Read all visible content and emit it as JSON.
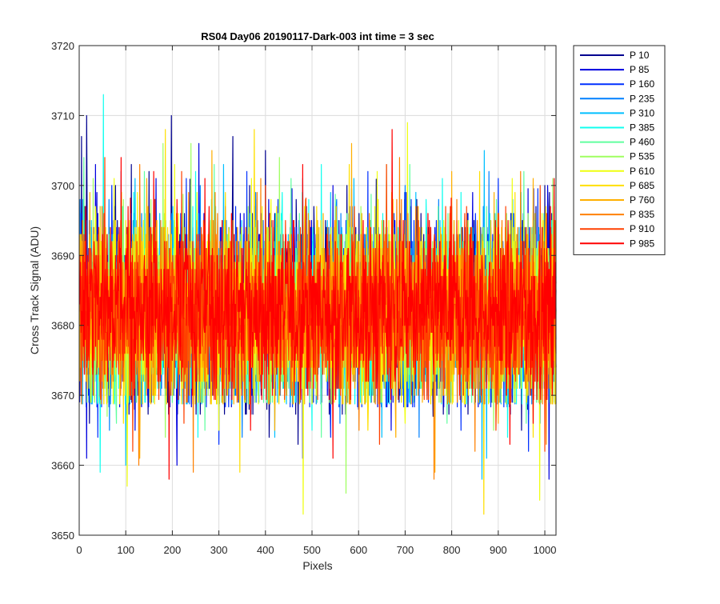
{
  "chart_data": {
    "type": "line",
    "title": "RS04 Day06 20190117-Dark-003 int time = 3 sec",
    "xlabel": "Pixels",
    "ylabel": "Cross Track Signal (ADU)",
    "xlim": [
      0,
      1024
    ],
    "ylim": [
      3650,
      3720
    ],
    "xticks": [
      0,
      100,
      200,
      300,
      400,
      500,
      600,
      700,
      800,
      900,
      1000
    ],
    "yticks": [
      3650,
      3660,
      3670,
      3680,
      3690,
      3700,
      3710,
      3720
    ],
    "grid": true,
    "legend_position": "outside-top-right",
    "x_range": [
      1,
      1024
    ],
    "series": [
      {
        "name": "P 10",
        "color": "#00008F",
        "mean": 3682,
        "sd": 7.0,
        "peaks": [
          [
            5,
            3707
          ],
          [
            16,
            3710
          ],
          [
            112,
            3703
          ],
          [
            150,
            3702
          ],
          [
            198,
            3710
          ],
          [
            330,
            3707
          ],
          [
            400,
            3705
          ],
          [
            466,
            3698
          ],
          [
            575,
            3700
          ],
          [
            800,
            3697
          ],
          [
            1000,
            3700
          ]
        ],
        "troughs": [
          [
            22,
            3666
          ],
          [
            190,
            3669
          ],
          [
            408,
            3664
          ],
          [
            470,
            3663
          ],
          [
            600,
            3668
          ],
          [
            760,
            3667
          ],
          [
            950,
            3665
          ]
        ]
      },
      {
        "name": "P 85",
        "color": "#0000DF",
        "mean": 3682,
        "sd": 6.5,
        "peaks": [
          [
            35,
            3703
          ],
          [
            165,
            3701
          ],
          [
            257,
            3706
          ],
          [
            545,
            3700
          ],
          [
            845,
            3699
          ],
          [
            1006,
            3700
          ]
        ],
        "troughs": [
          [
            16,
            3661
          ],
          [
            120,
            3665
          ],
          [
            210,
            3660
          ],
          [
            480,
            3661
          ],
          [
            670,
            3665
          ],
          [
            1009,
            3658
          ]
        ]
      },
      {
        "name": "P 160",
        "color": "#0030FF",
        "mean": 3682,
        "sd": 6.5,
        "peaks": [
          [
            70,
            3700
          ],
          [
            230,
            3701
          ],
          [
            360,
            3702
          ],
          [
            620,
            3702
          ],
          [
            900,
            3701
          ]
        ],
        "troughs": [
          [
            40,
            3664
          ],
          [
            300,
            3663
          ],
          [
            540,
            3664
          ],
          [
            820,
            3665
          ],
          [
            965,
            3662
          ]
        ]
      },
      {
        "name": "P 235",
        "color": "#0080FF",
        "mean": 3682,
        "sd": 6.3,
        "peaks": [
          [
            90,
            3702
          ],
          [
            260,
            3700
          ],
          [
            480,
            3701
          ],
          [
            700,
            3700
          ],
          [
            880,
            3702
          ]
        ],
        "troughs": [
          [
            65,
            3665
          ],
          [
            350,
            3664
          ],
          [
            560,
            3666
          ],
          [
            730,
            3664
          ],
          [
            990,
            3666
          ]
        ]
      },
      {
        "name": "P 310",
        "color": "#00BFFF",
        "mean": 3682,
        "sd": 6.3,
        "peaks": [
          [
            120,
            3701
          ],
          [
            310,
            3703
          ],
          [
            590,
            3701
          ],
          [
            870,
            3705
          ]
        ],
        "troughs": [
          [
            100,
            3660
          ],
          [
            420,
            3664
          ],
          [
            650,
            3664
          ],
          [
            865,
            3658
          ],
          [
            875,
            3661
          ]
        ]
      },
      {
        "name": "P 385",
        "color": "#10FFEF",
        "mean": 3682,
        "sd": 6.3,
        "peaks": [
          [
            45,
            3709
          ],
          [
            52,
            3713
          ],
          [
            250,
            3702
          ],
          [
            520,
            3703
          ],
          [
            780,
            3701
          ]
        ],
        "troughs": [
          [
            45,
            3659
          ],
          [
            255,
            3664
          ],
          [
            500,
            3665
          ],
          [
            920,
            3664
          ]
        ]
      },
      {
        "name": "P 460",
        "color": "#60FF9F",
        "mean": 3682,
        "sd": 6.2,
        "peaks": [
          [
            10,
            3704
          ],
          [
            140,
            3702
          ],
          [
            290,
            3703
          ],
          [
            455,
            3701
          ],
          [
            710,
            3703
          ],
          [
            955,
            3702
          ]
        ],
        "troughs": [
          [
            80,
            3666
          ],
          [
            270,
            3665
          ],
          [
            520,
            3664
          ],
          [
            790,
            3666
          ],
          [
            960,
            3666
          ]
        ]
      },
      {
        "name": "P 535",
        "color": "#9FFF60",
        "mean": 3682,
        "sd": 6.2,
        "peaks": [
          [
            30,
            3701
          ],
          [
            180,
            3706
          ],
          [
            240,
            3706
          ],
          [
            430,
            3704
          ],
          [
            660,
            3703
          ],
          [
            1017,
            3701
          ]
        ],
        "troughs": [
          [
            60,
            3667
          ],
          [
            185,
            3664
          ],
          [
            573,
            3656
          ],
          [
            890,
            3665
          ]
        ]
      },
      {
        "name": "P 610",
        "color": "#EFFF10",
        "mean": 3682,
        "sd": 6.3,
        "peaks": [
          [
            75,
            3701
          ],
          [
            205,
            3703
          ],
          [
            370,
            3701
          ],
          [
            640,
            3702
          ],
          [
            705,
            3709
          ],
          [
            930,
            3701
          ]
        ],
        "troughs": [
          [
            103,
            3657
          ],
          [
            300,
            3665
          ],
          [
            481,
            3653
          ],
          [
            700,
            3666
          ],
          [
            989,
            3655
          ]
        ]
      },
      {
        "name": "P 685",
        "color": "#FFDF00",
        "mean": 3682,
        "sd": 6.3,
        "peaks": [
          [
            185,
            3708
          ],
          [
            376,
            3708
          ],
          [
            580,
            3703
          ],
          [
            860,
            3702
          ]
        ],
        "troughs": [
          [
            95,
            3666
          ],
          [
            345,
            3659
          ],
          [
            620,
            3665
          ],
          [
            869,
            3653
          ],
          [
            975,
            3664
          ]
        ]
      },
      {
        "name": "P 760",
        "color": "#FFAF00",
        "mean": 3682,
        "sd": 6.3,
        "peaks": [
          [
            145,
            3701
          ],
          [
            285,
            3705
          ],
          [
            585,
            3706
          ],
          [
            800,
            3702
          ],
          [
            975,
            3701
          ]
        ],
        "troughs": [
          [
            130,
            3661
          ],
          [
            420,
            3665
          ],
          [
            680,
            3664
          ],
          [
            764,
            3659
          ],
          [
            900,
            3666
          ]
        ]
      },
      {
        "name": "P 835",
        "color": "#FF8000",
        "mean": 3682,
        "sd": 6.3,
        "peaks": [
          [
            130,
            3703
          ],
          [
            390,
            3701
          ],
          [
            688,
            3704
          ],
          [
            948,
            3702
          ]
        ],
        "troughs": [
          [
            128,
            3660
          ],
          [
            245,
            3659
          ],
          [
            601,
            3665
          ],
          [
            762,
            3658
          ],
          [
            850,
            3662
          ],
          [
            1003,
            3663
          ]
        ]
      },
      {
        "name": "P 910",
        "color": "#FF4000",
        "mean": 3682,
        "sd": 6.0,
        "peaks": [
          [
            55,
            3704
          ],
          [
            220,
            3702
          ],
          [
            400,
            3700
          ],
          [
            660,
            3703
          ],
          [
            990,
            3700
          ]
        ],
        "troughs": [
          [
            115,
            3662
          ],
          [
            225,
            3666
          ],
          [
            645,
            3663
          ],
          [
            895,
            3665
          ],
          [
            1000,
            3662
          ]
        ]
      },
      {
        "name": "P 985",
        "color": "#FF0000",
        "mean": 3682,
        "sd": 6.0,
        "peaks": [
          [
            90,
            3704
          ],
          [
            160,
            3702
          ],
          [
            270,
            3701
          ],
          [
            480,
            3703
          ],
          [
            672,
            3708
          ],
          [
            1020,
            3701
          ]
        ],
        "troughs": [
          [
            193,
            3658
          ],
          [
            368,
            3665
          ],
          [
            545,
            3661
          ],
          [
            925,
            3663
          ],
          [
            975,
            3666
          ]
        ]
      }
    ]
  }
}
